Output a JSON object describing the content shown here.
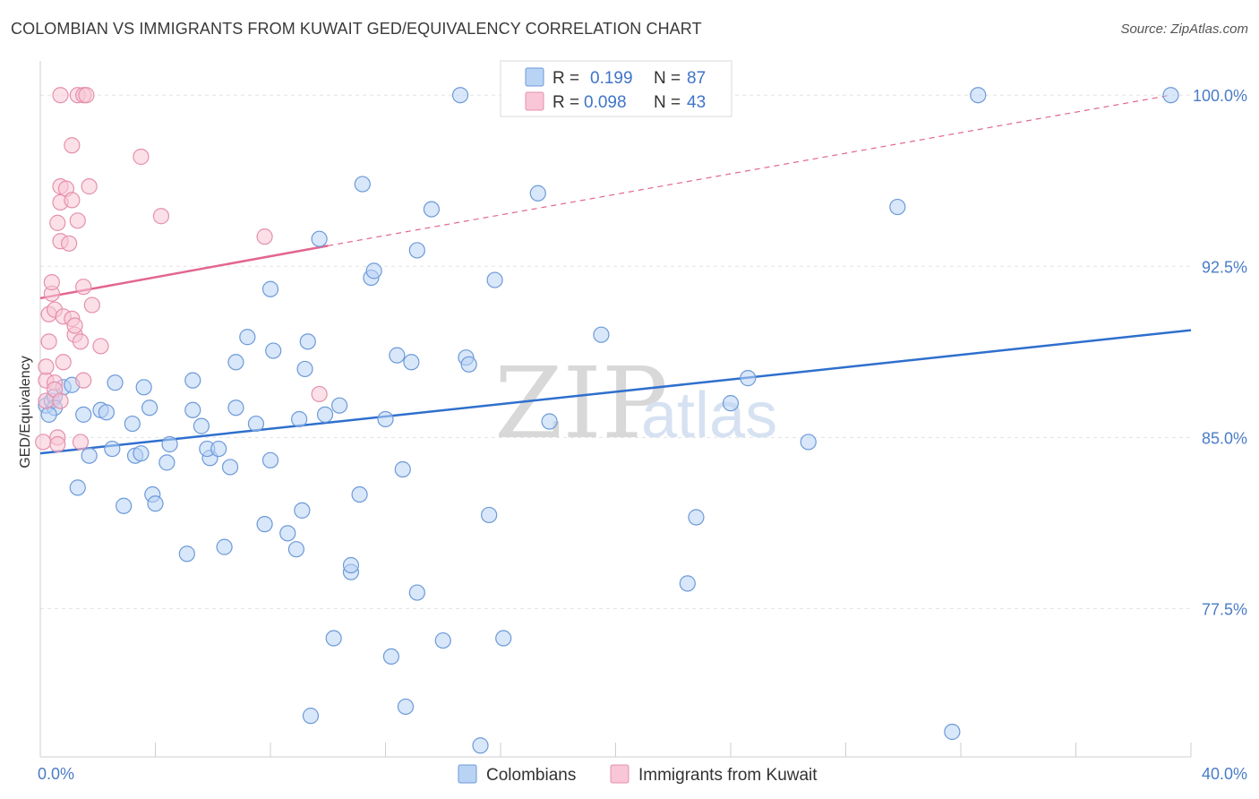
{
  "title": "COLOMBIAN VS IMMIGRANTS FROM KUWAIT GED/EQUIVALENCY CORRELATION CHART",
  "source": "Source: ZipAtlas.com",
  "watermark": {
    "zip": "ZIP",
    "atlas": "atlas"
  },
  "chart_data": {
    "type": "scatter",
    "ylabel": "GED/Equivalency",
    "xlabel": "",
    "xlim": [
      0,
      40
    ],
    "ylim": [
      71.0,
      101.5
    ],
    "x_tick_labels": [
      "0.0%",
      "40.0%"
    ],
    "y_ticks": [
      {
        "value": 100.0,
        "label": "100.0%"
      },
      {
        "value": 92.5,
        "label": "92.5%"
      },
      {
        "value": 85.0,
        "label": "85.0%"
      },
      {
        "value": 77.5,
        "label": "77.5%"
      }
    ],
    "colors": {
      "blue_fill": "#b9d3f5",
      "blue_stroke": "#6c9ad8",
      "blue_line": "#2f6fce",
      "pink_fill": "#f8c6d6",
      "pink_stroke": "#e590ac",
      "pink_line": "#e2668e",
      "tick": "#4a7cc7",
      "grid": "#e3e3e3"
    },
    "legend": {
      "rows": [
        {
          "r_label": "R =",
          "r_value": "0.199",
          "n_label": "N =",
          "n_value": "87"
        },
        {
          "r_label": "R =",
          "r_value": "0.098",
          "n_label": "N =",
          "n_value": "43"
        }
      ]
    },
    "series": [
      {
        "name": "Colombians",
        "trend": {
          "x": [
            0,
            40
          ],
          "y": [
            84.3,
            89.7
          ],
          "dashed_from": null
        },
        "points": [
          [
            0.2,
            86.4
          ],
          [
            0.4,
            86.6
          ],
          [
            0.5,
            86.8
          ],
          [
            0.8,
            87.2
          ],
          [
            1.1,
            87.3
          ],
          [
            1.5,
            86.0
          ],
          [
            1.7,
            84.2
          ],
          [
            1.3,
            82.8
          ],
          [
            2.1,
            86.2
          ],
          [
            2.3,
            86.1
          ],
          [
            2.6,
            87.4
          ],
          [
            2.5,
            84.5
          ],
          [
            2.9,
            82.0
          ],
          [
            3.2,
            85.6
          ],
          [
            3.3,
            84.2
          ],
          [
            3.5,
            84.3
          ],
          [
            3.6,
            87.2
          ],
          [
            3.8,
            86.3
          ],
          [
            3.9,
            82.5
          ],
          [
            4.0,
            82.1
          ],
          [
            4.4,
            83.9
          ],
          [
            4.5,
            84.7
          ],
          [
            5.1,
            79.9
          ],
          [
            5.3,
            86.2
          ],
          [
            5.3,
            87.5
          ],
          [
            5.6,
            85.5
          ],
          [
            5.9,
            84.1
          ],
          [
            5.8,
            84.5
          ],
          [
            6.2,
            84.5
          ],
          [
            6.4,
            80.2
          ],
          [
            6.6,
            83.7
          ],
          [
            6.8,
            86.3
          ],
          [
            6.8,
            88.3
          ],
          [
            7.2,
            89.4
          ],
          [
            7.5,
            85.6
          ],
          [
            8.0,
            91.5
          ],
          [
            7.8,
            81.2
          ],
          [
            8.0,
            84.0
          ],
          [
            8.1,
            88.8
          ],
          [
            8.6,
            80.8
          ],
          [
            8.9,
            80.1
          ],
          [
            9.0,
            85.8
          ],
          [
            9.1,
            81.8
          ],
          [
            9.3,
            89.2
          ],
          [
            9.2,
            88.0
          ],
          [
            9.7,
            93.7
          ],
          [
            9.9,
            86.0
          ],
          [
            10.4,
            86.4
          ],
          [
            10.2,
            76.2
          ],
          [
            10.8,
            79.1
          ],
          [
            10.8,
            79.4
          ],
          [
            11.1,
            82.5
          ],
          [
            11.2,
            96.1
          ],
          [
            11.5,
            92.0
          ],
          [
            11.6,
            92.3
          ],
          [
            12.0,
            85.8
          ],
          [
            12.2,
            75.4
          ],
          [
            12.6,
            83.6
          ],
          [
            12.9,
            88.3
          ],
          [
            12.4,
            88.6
          ],
          [
            13.1,
            93.2
          ],
          [
            13.1,
            78.2
          ],
          [
            13.6,
            95.0
          ],
          [
            14.0,
            76.1
          ],
          [
            14.6,
            100.0
          ],
          [
            14.8,
            88.5
          ],
          [
            14.9,
            88.2
          ],
          [
            15.3,
            71.5
          ],
          [
            15.6,
            81.6
          ],
          [
            15.8,
            91.9
          ],
          [
            16.1,
            76.2
          ],
          [
            17.3,
            95.7
          ],
          [
            17.7,
            85.7
          ],
          [
            19.5,
            89.5
          ],
          [
            12.7,
            73.2
          ],
          [
            22.5,
            78.6
          ],
          [
            22.8,
            81.5
          ],
          [
            9.4,
            72.8
          ],
          [
            24.0,
            86.5
          ],
          [
            24.6,
            87.6
          ],
          [
            26.7,
            84.8
          ],
          [
            29.8,
            95.1
          ],
          [
            31.7,
            72.1
          ],
          [
            32.6,
            100.0
          ],
          [
            39.3,
            100.0
          ],
          [
            0.5,
            86.3
          ],
          [
            0.3,
            86.0
          ]
        ]
      },
      {
        "name": "Immigrants from Kuwait",
        "trend": {
          "x": [
            0,
            10.0
          ],
          "y": [
            91.1,
            93.4
          ],
          "dashed_to": [
            39.3,
            100.0
          ]
        },
        "points": [
          [
            0.1,
            84.8
          ],
          [
            0.2,
            86.6
          ],
          [
            0.2,
            87.5
          ],
          [
            0.2,
            88.1
          ],
          [
            0.3,
            89.2
          ],
          [
            0.3,
            90.4
          ],
          [
            0.4,
            91.3
          ],
          [
            0.4,
            91.8
          ],
          [
            0.5,
            90.6
          ],
          [
            0.5,
            87.4
          ],
          [
            0.5,
            87.1
          ],
          [
            0.6,
            85.0
          ],
          [
            0.6,
            84.7
          ],
          [
            0.7,
            86.6
          ],
          [
            0.6,
            94.4
          ],
          [
            0.7,
            93.6
          ],
          [
            0.7,
            95.3
          ],
          [
            0.7,
            96.0
          ],
          [
            0.7,
            100.0
          ],
          [
            0.8,
            88.3
          ],
          [
            0.8,
            90.3
          ],
          [
            0.9,
            95.9
          ],
          [
            1.0,
            93.5
          ],
          [
            1.1,
            95.4
          ],
          [
            1.1,
            97.8
          ],
          [
            1.1,
            90.2
          ],
          [
            1.2,
            89.5
          ],
          [
            1.2,
            89.9
          ],
          [
            1.3,
            94.5
          ],
          [
            1.3,
            100.0
          ],
          [
            1.4,
            89.2
          ],
          [
            1.4,
            84.8
          ],
          [
            1.5,
            100.0
          ],
          [
            1.5,
            91.6
          ],
          [
            1.5,
            87.5
          ],
          [
            1.6,
            100.0
          ],
          [
            1.7,
            96.0
          ],
          [
            1.8,
            90.8
          ],
          [
            2.1,
            89.0
          ],
          [
            3.5,
            97.3
          ],
          [
            4.2,
            94.7
          ],
          [
            7.8,
            93.8
          ],
          [
            9.7,
            86.9
          ]
        ]
      }
    ]
  },
  "bottom_legend": {
    "items": [
      "Colombians",
      "Immigrants from Kuwait"
    ]
  }
}
